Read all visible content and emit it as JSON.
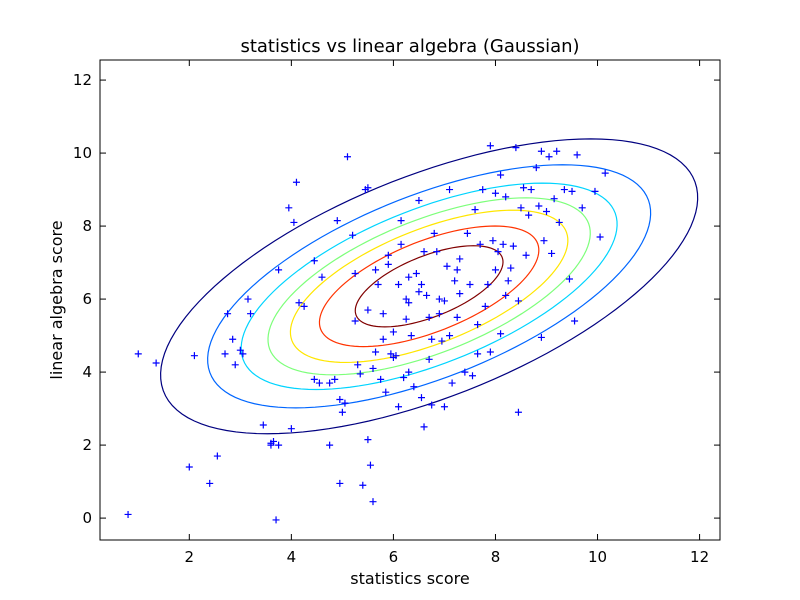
{
  "chart_data": {
    "type": "scatter",
    "title": "statistics vs linear algebra (Gaussian)",
    "xlabel": "statistics score",
    "ylabel": "linear algebra score",
    "xlim": [
      0.25,
      12.4
    ],
    "ylim": [
      -0.6,
      12.55
    ],
    "xticks": [
      2,
      4,
      6,
      8,
      10,
      12
    ],
    "yticks": [
      0,
      2,
      4,
      6,
      8,
      10,
      12
    ],
    "grid": false,
    "marker": "+",
    "marker_color": "#0000ff",
    "points": [
      [
        0.8,
        0.1
      ],
      [
        1.0,
        4.5
      ],
      [
        1.35,
        4.25
      ],
      [
        2.0,
        1.4
      ],
      [
        2.1,
        4.45
      ],
      [
        2.4,
        0.95
      ],
      [
        2.55,
        1.7
      ],
      [
        2.7,
        4.5
      ],
      [
        2.75,
        5.6
      ],
      [
        2.85,
        4.9
      ],
      [
        2.9,
        4.2
      ],
      [
        3.0,
        4.6
      ],
      [
        3.05,
        4.5
      ],
      [
        3.15,
        6.0
      ],
      [
        3.2,
        5.6
      ],
      [
        3.45,
        2.55
      ],
      [
        3.6,
        2.05
      ],
      [
        3.6,
        2.0
      ],
      [
        3.65,
        2.1
      ],
      [
        3.7,
        -0.05
      ],
      [
        3.75,
        6.8
      ],
      [
        3.75,
        2.0
      ],
      [
        3.95,
        8.5
      ],
      [
        4.0,
        2.45
      ],
      [
        4.05,
        8.1
      ],
      [
        4.1,
        9.2
      ],
      [
        4.15,
        5.9
      ],
      [
        4.25,
        5.8
      ],
      [
        4.45,
        3.8
      ],
      [
        4.45,
        7.05
      ],
      [
        4.55,
        3.7
      ],
      [
        4.6,
        6.6
      ],
      [
        4.75,
        2.0
      ],
      [
        4.75,
        3.7
      ],
      [
        4.85,
        3.8
      ],
      [
        4.9,
        8.15
      ],
      [
        4.95,
        0.95
      ],
      [
        4.95,
        3.25
      ],
      [
        5.0,
        2.9
      ],
      [
        5.05,
        3.15
      ],
      [
        5.1,
        9.9
      ],
      [
        5.2,
        7.75
      ],
      [
        5.25,
        6.7
      ],
      [
        5.25,
        5.4
      ],
      [
        5.3,
        4.2
      ],
      [
        5.35,
        3.95
      ],
      [
        5.4,
        0.9
      ],
      [
        5.45,
        9.0
      ],
      [
        5.5,
        9.05
      ],
      [
        5.5,
        2.15
      ],
      [
        5.5,
        5.7
      ],
      [
        5.55,
        1.45
      ],
      [
        5.6,
        4.1
      ],
      [
        5.6,
        0.45
      ],
      [
        5.65,
        6.8
      ],
      [
        5.65,
        4.55
      ],
      [
        5.7,
        6.4
      ],
      [
        5.75,
        3.8
      ],
      [
        5.8,
        5.6
      ],
      [
        5.85,
        3.45
      ],
      [
        5.9,
        7.2
      ],
      [
        5.95,
        4.5
      ],
      [
        6.0,
        4.4
      ],
      [
        6.0,
        5.1
      ],
      [
        6.05,
        4.45
      ],
      [
        6.1,
        3.05
      ],
      [
        6.1,
        6.4
      ],
      [
        6.15,
        7.5
      ],
      [
        6.15,
        8.15
      ],
      [
        6.2,
        3.85
      ],
      [
        6.25,
        6.0
      ],
      [
        6.25,
        5.45
      ],
      [
        6.3,
        5.9
      ],
      [
        6.3,
        4.0
      ],
      [
        6.35,
        5.0
      ],
      [
        6.4,
        3.6
      ],
      [
        6.45,
        6.7
      ],
      [
        6.5,
        6.2
      ],
      [
        6.5,
        8.7
      ],
      [
        6.55,
        3.3
      ],
      [
        6.55,
        6.4
      ],
      [
        6.6,
        2.5
      ],
      [
        6.65,
        6.1
      ],
      [
        6.7,
        5.5
      ],
      [
        6.7,
        4.35
      ],
      [
        6.75,
        3.1
      ],
      [
        6.8,
        7.8
      ],
      [
        6.85,
        7.3
      ],
      [
        6.9,
        6.0
      ],
      [
        6.95,
        4.85
      ],
      [
        7.0,
        3.05
      ],
      [
        7.0,
        5.95
      ],
      [
        7.05,
        6.9
      ],
      [
        7.1,
        5.0
      ],
      [
        7.1,
        9.0
      ],
      [
        7.2,
        6.5
      ],
      [
        7.25,
        5.5
      ],
      [
        7.3,
        7.1
      ],
      [
        7.3,
        6.15
      ],
      [
        7.4,
        4.0
      ],
      [
        7.45,
        7.8
      ],
      [
        7.5,
        6.4
      ],
      [
        7.55,
        3.9
      ],
      [
        7.6,
        8.45
      ],
      [
        7.65,
        4.5
      ],
      [
        7.7,
        7.5
      ],
      [
        7.75,
        9.0
      ],
      [
        7.8,
        5.8
      ],
      [
        7.85,
        6.4
      ],
      [
        7.9,
        10.2
      ],
      [
        7.95,
        7.6
      ],
      [
        8.0,
        6.8
      ],
      [
        8.0,
        8.9
      ],
      [
        8.05,
        7.3
      ],
      [
        8.1,
        9.4
      ],
      [
        8.1,
        5.05
      ],
      [
        8.15,
        7.5
      ],
      [
        8.2,
        8.8
      ],
      [
        8.25,
        6.5
      ],
      [
        8.3,
        6.85
      ],
      [
        8.35,
        7.45
      ],
      [
        8.4,
        10.15
      ],
      [
        8.45,
        5.95
      ],
      [
        8.5,
        8.5
      ],
      [
        8.55,
        9.05
      ],
      [
        8.6,
        7.2
      ],
      [
        8.65,
        8.3
      ],
      [
        8.7,
        9.0
      ],
      [
        8.8,
        9.6
      ],
      [
        8.85,
        8.55
      ],
      [
        8.9,
        10.05
      ],
      [
        8.95,
        7.6
      ],
      [
        9.0,
        8.4
      ],
      [
        9.05,
        9.9
      ],
      [
        9.1,
        7.25
      ],
      [
        9.15,
        8.75
      ],
      [
        9.2,
        10.05
      ],
      [
        9.25,
        8.1
      ],
      [
        9.35,
        9.0
      ],
      [
        9.45,
        6.55
      ],
      [
        9.5,
        8.95
      ],
      [
        9.55,
        5.4
      ],
      [
        9.6,
        9.95
      ],
      [
        9.7,
        8.5
      ],
      [
        9.95,
        8.95
      ],
      [
        10.05,
        7.7
      ],
      [
        10.15,
        9.45
      ],
      [
        8.9,
        4.95
      ],
      [
        8.45,
        2.9
      ],
      [
        7.9,
        4.55
      ],
      [
        6.9,
        5.6
      ],
      [
        6.3,
        6.6
      ],
      [
        5.9,
        6.95
      ],
      [
        6.6,
        7.3
      ],
      [
        7.25,
        6.8
      ],
      [
        7.65,
        5.3
      ],
      [
        8.2,
        6.1
      ],
      [
        7.15,
        3.7
      ],
      [
        6.75,
        4.9
      ],
      [
        5.8,
        4.9
      ]
    ],
    "contours": {
      "center": [
        6.7,
        6.35
      ],
      "angle_deg": 33,
      "levels": [
        {
          "color": "#800000",
          "rx": 1.65,
          "ry": 0.78
        },
        {
          "color": "#ff3300",
          "rx": 2.45,
          "ry": 1.16
        },
        {
          "color": "#ffe600",
          "rx": 3.1,
          "ry": 1.46
        },
        {
          "color": "#7dff7a",
          "rx": 3.6,
          "ry": 1.7
        },
        {
          "color": "#00d4ff",
          "rx": 4.2,
          "ry": 1.98
        },
        {
          "color": "#0066ff",
          "rx": 4.95,
          "ry": 2.33
        },
        {
          "color": "#000080",
          "rx": 6.0,
          "ry": 2.83
        }
      ]
    }
  }
}
